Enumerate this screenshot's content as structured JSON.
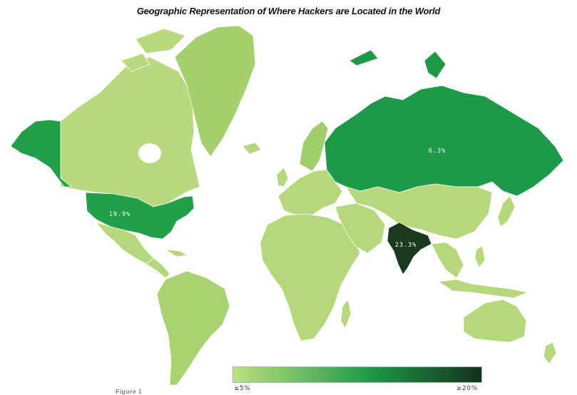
{
  "title": "Geographic Representation of Where Hackers are Located in the World",
  "figure_label": "Figure 1",
  "legend": {
    "min_label": "≤5%",
    "max_label": "≥20%",
    "min_color": "#bddf7f",
    "mid_color": "#1e9a46",
    "max_color": "#14321a"
  },
  "highlighted": [
    {
      "country": "India",
      "label": "23.3%",
      "value": 23.3,
      "color": "#1a3a1f"
    },
    {
      "country": "United States",
      "label": "19.9%",
      "value": 19.9,
      "color": "#20a048"
    },
    {
      "country": "Russia",
      "label": "6.3%",
      "value": 6.3,
      "color": "#1d9a47"
    }
  ],
  "colors": {
    "low": "#b5d97a",
    "canada": "#b8da7d",
    "greenland": "#a4d06d",
    "alaska": "#20a048",
    "europe_mid": "#9fce6a",
    "south_america": "#a9d370",
    "australia": "#b5d97a"
  }
}
